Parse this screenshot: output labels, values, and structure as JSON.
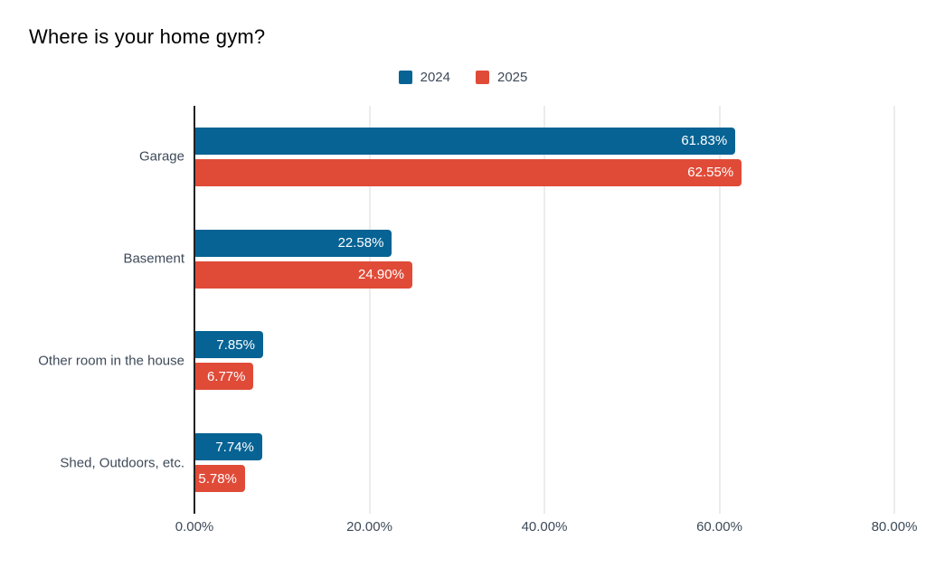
{
  "chart_data": {
    "type": "bar",
    "orientation": "horizontal",
    "title": "Where is your home gym?",
    "categories": [
      "Garage",
      "Basement",
      "Other room in the house",
      "Shed, Outdoors, etc."
    ],
    "series": [
      {
        "name": "2024",
        "color": "#066394",
        "values": [
          61.83,
          22.58,
          7.85,
          7.74
        ]
      },
      {
        "name": "2025",
        "color": "#e04b38",
        "values": [
          62.55,
          24.9,
          6.77,
          5.78
        ]
      }
    ],
    "value_labels": [
      [
        "61.83%",
        "22.58%",
        "7.85%",
        "7.74%"
      ],
      [
        "62.55%",
        "24.90%",
        "6.77%",
        "5.78%"
      ]
    ],
    "xlim": [
      0,
      80
    ],
    "x_ticks": [
      "0.00%",
      "20.00%",
      "40.00%",
      "60.00%",
      "80.00%"
    ],
    "legend_position": "top-center",
    "grid": "vertical",
    "colors": {
      "axis_text": "#3e4a59",
      "gridline": "#d9d9d9",
      "baseline": "#212121",
      "value_label": "#ffffff",
      "title": "#000000",
      "background": "#ffffff"
    }
  }
}
